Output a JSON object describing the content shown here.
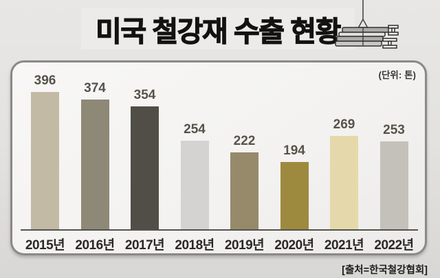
{
  "title": {
    "text": "미국 철강재 수출 현황"
  },
  "unit_label": "(단위: 톤)",
  "source_label": "[출처=한국철강협회]",
  "icons": {
    "crane_beams": "steel-beams-crane-icon"
  },
  "colors": {
    "panel_border": "#8b8886",
    "axis_line": "#55524d",
    "value_label": "#57524a",
    "year_label": "#2b2825",
    "title_text": "#131211"
  },
  "chart_data": {
    "type": "bar",
    "title": "미국 철강재 수출 현황",
    "unit": "톤",
    "categories": [
      "2015년",
      "2016년",
      "2017년",
      "2018년",
      "2019년",
      "2020년",
      "2021년",
      "2022년"
    ],
    "values": [
      396,
      374,
      354,
      254,
      222,
      194,
      269,
      253
    ],
    "bar_colors": [
      "#c3baa5",
      "#8e8877",
      "#504e47",
      "#d4d3d1",
      "#968a6b",
      "#9e8a3e",
      "#e5d9ac",
      "#c4c1ba"
    ],
    "ylim": [
      0,
      420
    ],
    "grid": false,
    "legend": false,
    "value_labels_shown": true,
    "source": "[출처=한국철강협회]"
  }
}
